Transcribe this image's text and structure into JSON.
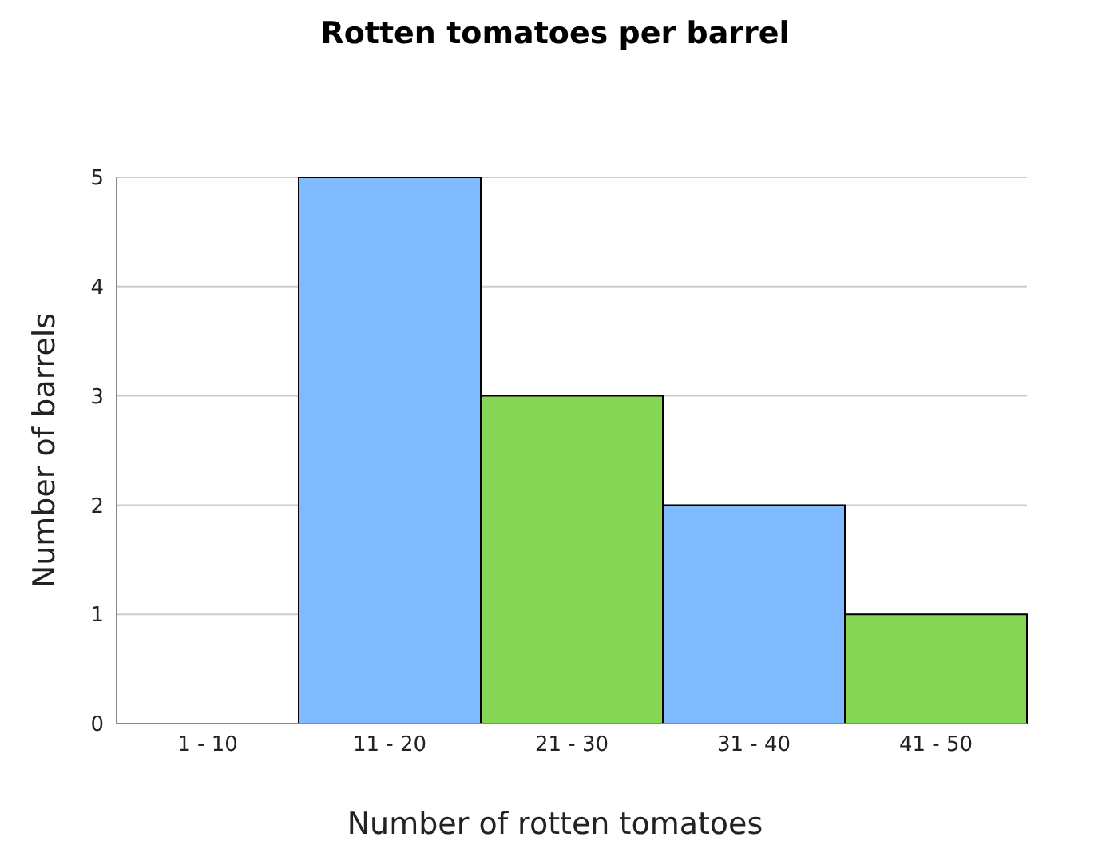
{
  "chart_data": {
    "type": "bar",
    "title": "Rotten tomatoes per barrel",
    "xlabel": "Number of rotten tomatoes",
    "ylabel": "Number of barrels",
    "categories": [
      "1 - 10",
      "11 - 20",
      "21 - 30",
      "31 - 40",
      "41 - 50"
    ],
    "values": [
      0,
      5,
      3,
      2,
      1
    ],
    "colors": [
      "#80bbff",
      "#80bbff",
      "#85d655",
      "#80bbff",
      "#85d655"
    ],
    "ylim": [
      0,
      5
    ],
    "yticks": [
      0,
      1,
      2,
      3,
      4,
      5
    ],
    "grid": "y"
  }
}
